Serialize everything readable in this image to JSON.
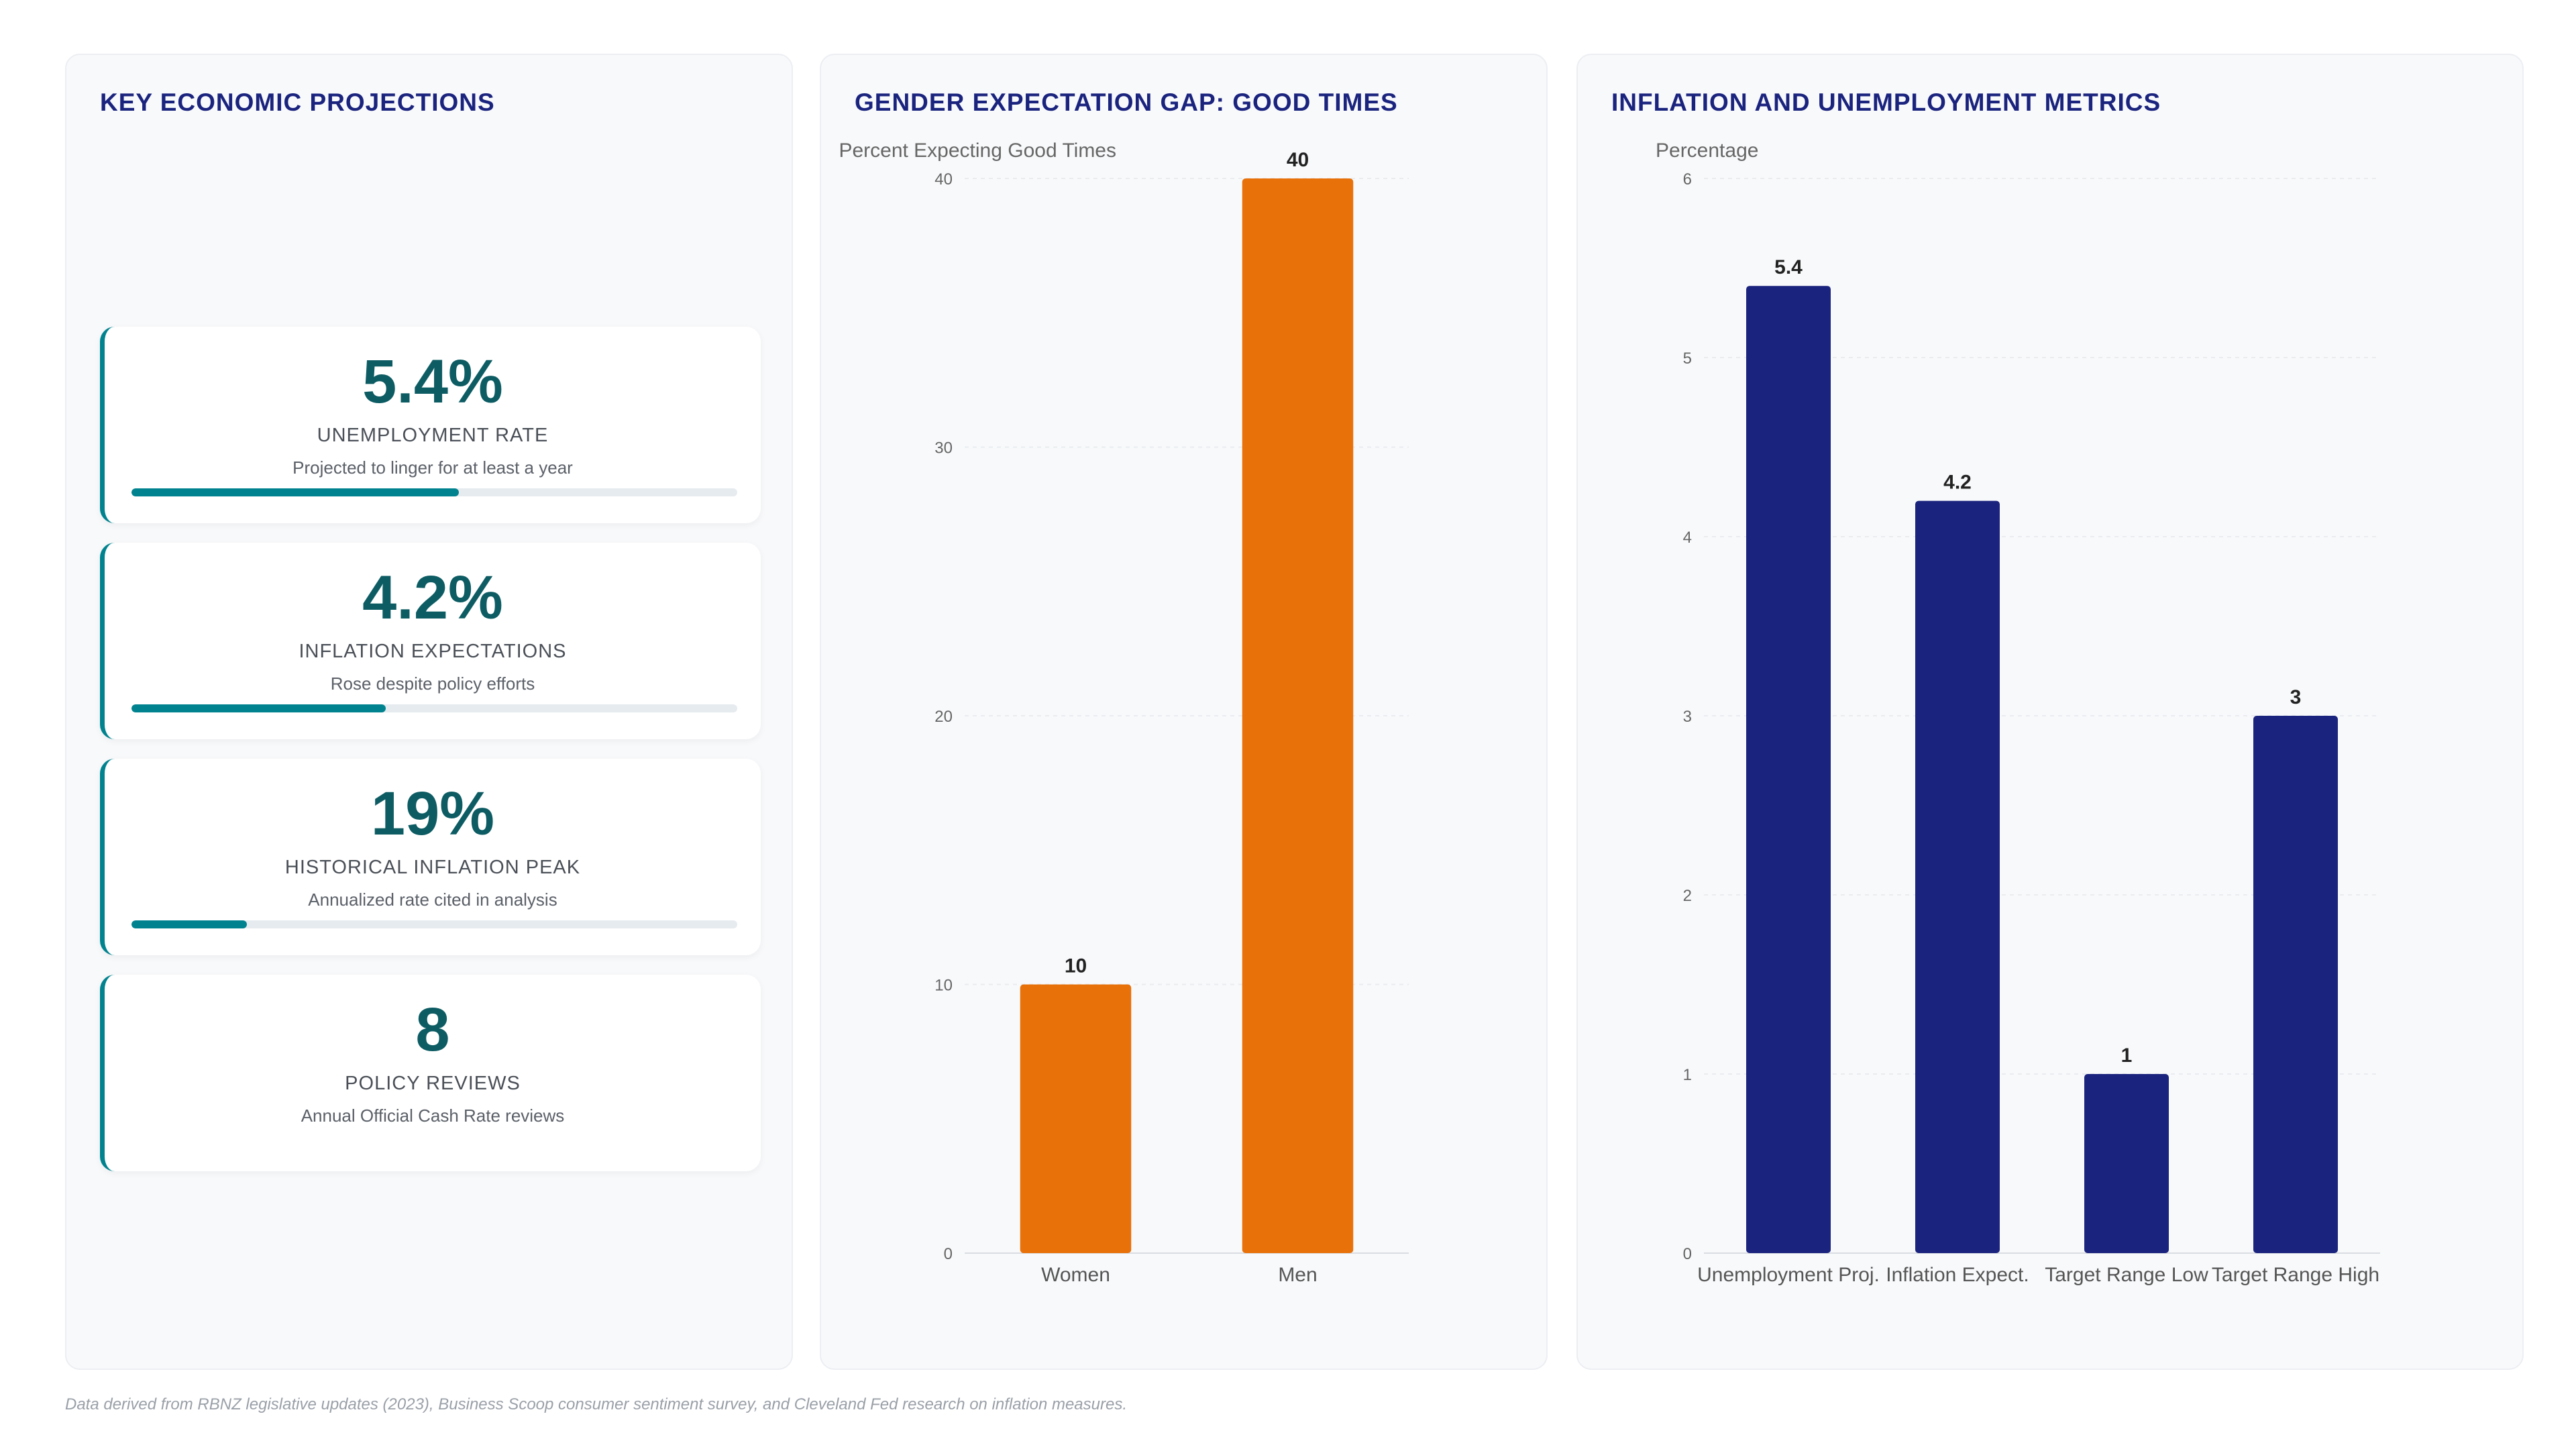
{
  "kpi_panel": {
    "title": "KEY ECONOMIC PROJECTIONS",
    "cards": [
      {
        "value": "5.4%",
        "label": "UNEMPLOYMENT RATE",
        "sub": "Projected to linger for at least a year",
        "progress": 0.54
      },
      {
        "value": "4.2%",
        "label": "INFLATION EXPECTATIONS",
        "sub": "Rose despite policy efforts",
        "progress": 0.42
      },
      {
        "value": "19%",
        "label": "HISTORICAL INFLATION PEAK",
        "sub": "Annualized rate cited in analysis",
        "progress": 0.19
      },
      {
        "value": "8",
        "label": "POLICY REVIEWS",
        "sub": "Annual Official Cash Rate reviews"
      }
    ]
  },
  "footer": "Data derived from RBNZ legislative updates (2023), Business Scoop consumer sentiment survey, and Cleveland Fed research on inflation measures.",
  "colors": {
    "title": "#1a237e",
    "accent": "#00838f",
    "kpi_value": "#0d5c63",
    "orange": "#e8710a",
    "navy": "#1a237e"
  },
  "chart_data": [
    {
      "type": "bar",
      "title": "GENDER EXPECTATION GAP: GOOD TIMES",
      "ylabel": "Percent Expecting Good Times",
      "xlabel": "",
      "categories": [
        "Women",
        "Men"
      ],
      "values": [
        10,
        40
      ],
      "ylim": [
        0,
        40
      ],
      "yticks": [
        0,
        10,
        20,
        30,
        40
      ],
      "grid": true,
      "color": "#e8710a"
    },
    {
      "type": "bar",
      "title": "INFLATION AND UNEMPLOYMENT METRICS",
      "ylabel": "Percentage",
      "xlabel": "",
      "categories": [
        "Unemployment Proj.",
        "Inflation Expect.",
        "Target Range Low",
        "Target Range High"
      ],
      "values": [
        5.4,
        4.2,
        1,
        3
      ],
      "ylim": [
        0,
        6
      ],
      "yticks": [
        0,
        1,
        2,
        3,
        4,
        5,
        6
      ],
      "grid": true,
      "color": "#1a237e"
    }
  ]
}
